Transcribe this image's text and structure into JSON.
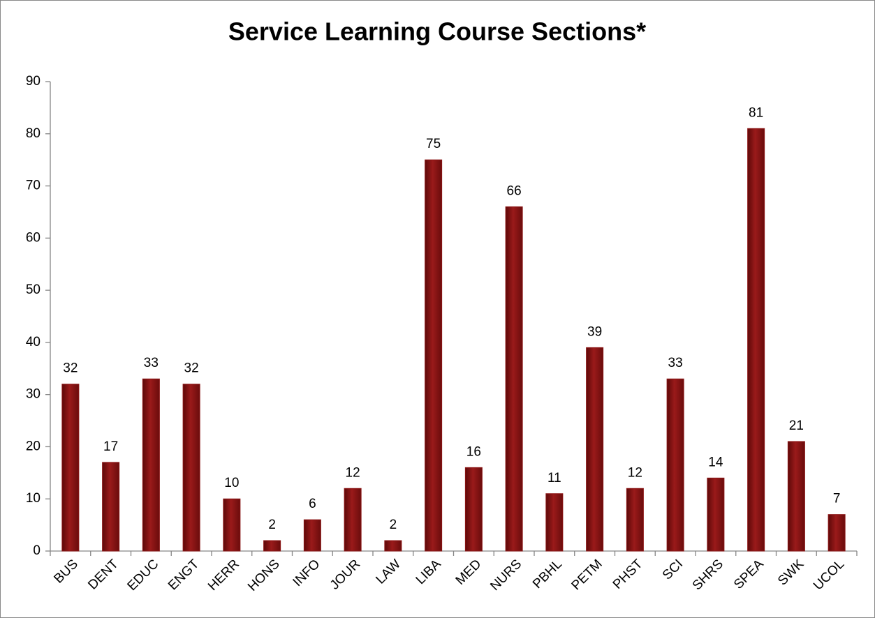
{
  "chart_data": {
    "type": "bar",
    "title": "Service Learning Course Sections*",
    "categories": [
      "BUS",
      "DENT",
      "EDUC",
      "ENGT",
      "HERR",
      "HONS",
      "INFO",
      "JOUR",
      "LAW",
      "LIBA",
      "MED",
      "NURS",
      "PBHL",
      "PETM",
      "PHST",
      "SCI",
      "SHRS",
      "SPEA",
      "SWK",
      "UCOL"
    ],
    "values": [
      32,
      17,
      33,
      32,
      10,
      2,
      6,
      12,
      2,
      75,
      16,
      66,
      11,
      39,
      12,
      33,
      14,
      81,
      21,
      7
    ],
    "color": "#8b1414",
    "ylim": [
      0,
      90
    ],
    "yticks": [
      0,
      10,
      20,
      30,
      40,
      50,
      60,
      70,
      80,
      90
    ],
    "grid": false
  }
}
